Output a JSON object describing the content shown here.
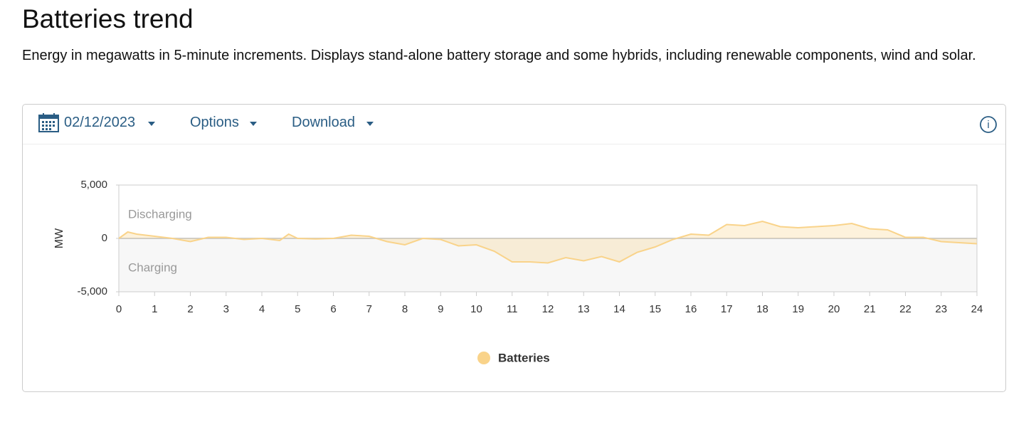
{
  "header": {
    "title": "Batteries trend",
    "description": "Energy in megawatts in 5-minute increments. Displays stand-alone battery storage and some hybrids, including renewable components, wind and solar."
  },
  "toolbar": {
    "date": "02/12/2023",
    "options": "Options",
    "download": "Download"
  },
  "chart_data": {
    "type": "area",
    "y_label": "MW",
    "annotations": [
      "Discharging",
      "Charging"
    ],
    "x": [
      0,
      0.25,
      0.5,
      1,
      1.5,
      2,
      2.5,
      3,
      3.5,
      4,
      4.5,
      4.75,
      5,
      5.5,
      6,
      6.5,
      7,
      7.5,
      8,
      8.5,
      9,
      9.5,
      10,
      10.5,
      11,
      11.5,
      12,
      12.5,
      13,
      13.5,
      14,
      14.5,
      15,
      15.5,
      16,
      16.5,
      17,
      17.5,
      18,
      18.5,
      19,
      19.5,
      20,
      20.5,
      21,
      21.5,
      22,
      22.5,
      23,
      23.5,
      24
    ],
    "series": [
      {
        "name": "Batteries",
        "color": "#f9d38a",
        "values": [
          0,
          600,
          400,
          200,
          0,
          -300,
          100,
          100,
          -100,
          0,
          -200,
          400,
          0,
          -50,
          0,
          300,
          200,
          -300,
          -600,
          0,
          -100,
          -700,
          -600,
          -1200,
          -2200,
          -2200,
          -2300,
          -1800,
          -2100,
          -1700,
          -2200,
          -1300,
          -800,
          -100,
          400,
          300,
          1300,
          1200,
          1600,
          1100,
          1000,
          1100,
          1200,
          1400,
          900,
          800,
          100,
          100,
          -300,
          -400,
          -500
        ]
      }
    ],
    "xlim": [
      0,
      24
    ],
    "xticks": [
      0,
      1,
      2,
      3,
      4,
      5,
      6,
      7,
      8,
      9,
      10,
      11,
      12,
      13,
      14,
      15,
      16,
      17,
      18,
      19,
      20,
      21,
      22,
      23,
      24
    ],
    "ylim": [
      -5000,
      5000
    ],
    "yticks": [
      {
        "value": 5000,
        "label": "5,000"
      },
      0,
      {
        "value": -5000,
        "label": "-5,000"
      }
    ],
    "legend": "bottom"
  }
}
